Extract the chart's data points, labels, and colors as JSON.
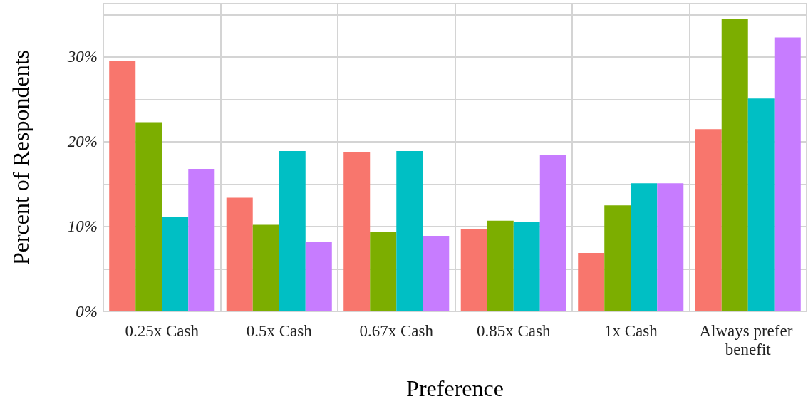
{
  "chart_data": {
    "type": "bar",
    "xlabel": "Preference",
    "ylabel": "Percent of Respondents",
    "categories": [
      "0.25x Cash",
      "0.5x Cash",
      "0.67x Cash",
      "0.85x Cash",
      "1x Cash",
      "Always prefer benefit"
    ],
    "series": [
      {
        "color": "#f8766d",
        "values": [
          29.5,
          13.4,
          18.8,
          9.7,
          6.9,
          21.5
        ]
      },
      {
        "color": "#7cae00",
        "values": [
          22.3,
          10.2,
          9.4,
          10.7,
          12.5,
          34.5
        ]
      },
      {
        "color": "#00bfc4",
        "values": [
          11.1,
          18.9,
          18.9,
          10.5,
          15.1,
          25.1
        ]
      },
      {
        "color": "#c77cff",
        "values": [
          16.8,
          8.2,
          8.9,
          18.4,
          15.1,
          32.3
        ]
      }
    ],
    "ylim": [
      0,
      36.3
    ],
    "yticks": [
      {
        "value": 0,
        "label": "0%"
      },
      {
        "value": 5,
        "label": null
      },
      {
        "value": 10,
        "label": "10%"
      },
      {
        "value": 15,
        "label": null
      },
      {
        "value": 20,
        "label": "20%"
      },
      {
        "value": 25,
        "label": null
      },
      {
        "value": 30,
        "label": "30%"
      },
      {
        "value": 35,
        "label": null
      }
    ],
    "grid": true
  }
}
